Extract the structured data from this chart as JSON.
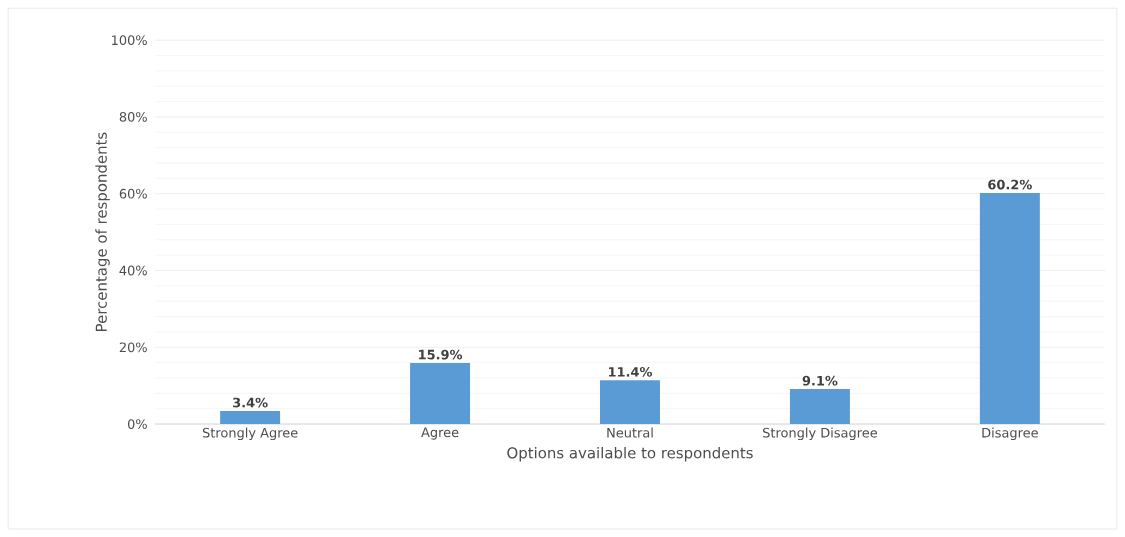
{
  "chart_data": {
    "type": "bar",
    "xlabel": "Options available to respondents",
    "ylabel": "Percentage of respondents",
    "categories": [
      "Strongly Agree",
      "Agree",
      "Neutral",
      "Strongly Disagree",
      "Disagree"
    ],
    "values": [
      3.4,
      15.9,
      11.4,
      9.1,
      60.2
    ],
    "value_labels": [
      "3.4%",
      "15.9%",
      "11.4%",
      "9.1%",
      "60.2%"
    ],
    "color": "#5b9bd5",
    "ylim": [
      0,
      100
    ],
    "yticks": [
      {
        "value": 0,
        "label": "0%"
      },
      {
        "value": 20,
        "label": "20%"
      },
      {
        "value": 40,
        "label": "40%"
      },
      {
        "value": 60,
        "label": "60%"
      },
      {
        "value": 80,
        "label": "80%"
      },
      {
        "value": 100,
        "label": "100%"
      }
    ],
    "grid": "y"
  }
}
